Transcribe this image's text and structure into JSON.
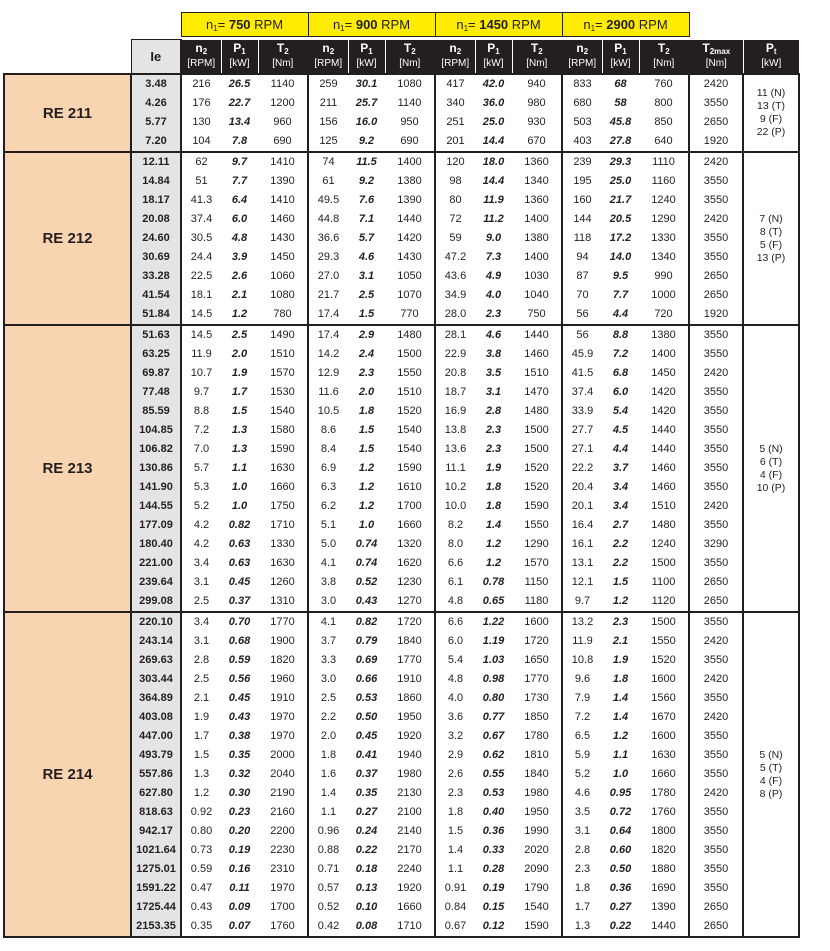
{
  "header": {
    "speed_groups": [
      {
        "prefix": "n",
        "sub": "1",
        "eq": "= ",
        "speed": "750",
        "unit": " RPM"
      },
      {
        "prefix": "n",
        "sub": "1",
        "eq": "= ",
        "speed": "900",
        "unit": " RPM"
      },
      {
        "prefix": "n",
        "sub": "1",
        "eq": "= ",
        "speed": "1450",
        "unit": " RPM"
      },
      {
        "prefix": "n",
        "sub": "1",
        "eq": "= ",
        "speed": "2900",
        "unit": " RPM"
      }
    ],
    "ie_label": "Ie",
    "sub_columns": [
      {
        "sym": "n",
        "sub": "2",
        "unit": "[RPM]"
      },
      {
        "sym": "P",
        "sub": "1",
        "unit": "[kW]"
      },
      {
        "sym": "T",
        "sub": "2",
        "unit": "[Nm]"
      }
    ],
    "t2max": {
      "sym": "T",
      "sub": "2max",
      "unit": "[Nm]"
    },
    "pt": {
      "sym": "P",
      "sub": "t",
      "unit": "[kW]"
    }
  },
  "groups": [
    {
      "name": "RE 211",
      "pt": [
        "11 (N)",
        "13 (T)",
        "9 (F)",
        "22 (P)"
      ],
      "rows": [
        [
          "3.48",
          "216",
          "26.5",
          "1140",
          "259",
          "30.1",
          "1080",
          "417",
          "42.0",
          "940",
          "833",
          "68",
          "760",
          "2420"
        ],
        [
          "4.26",
          "176",
          "22.7",
          "1200",
          "211",
          "25.7",
          "1140",
          "340",
          "36.0",
          "980",
          "680",
          "58",
          "800",
          "3550"
        ],
        [
          "5.77",
          "130",
          "13.4",
          "960",
          "156",
          "16.0",
          "950",
          "251",
          "25.0",
          "930",
          "503",
          "45.8",
          "850",
          "2650"
        ],
        [
          "7.20",
          "104",
          "7.8",
          "690",
          "125",
          "9.2",
          "690",
          "201",
          "14.4",
          "670",
          "403",
          "27.8",
          "640",
          "1920"
        ]
      ]
    },
    {
      "name": "RE 212",
      "pt": [
        "7 (N)",
        "8 (T)",
        "5 (F)",
        "13 (P)"
      ],
      "rows": [
        [
          "12.11",
          "62",
          "9.7",
          "1410",
          "74",
          "11.5",
          "1400",
          "120",
          "18.0",
          "1360",
          "239",
          "29.3",
          "1110",
          "2420"
        ],
        [
          "14.84",
          "51",
          "7.7",
          "1390",
          "61",
          "9.2",
          "1380",
          "98",
          "14.4",
          "1340",
          "195",
          "25.0",
          "1160",
          "3550"
        ],
        [
          "18.17",
          "41.3",
          "6.4",
          "1410",
          "49.5",
          "7.6",
          "1390",
          "80",
          "11.9",
          "1360",
          "160",
          "21.7",
          "1240",
          "3550"
        ],
        [
          "20.08",
          "37.4",
          "6.0",
          "1460",
          "44.8",
          "7.1",
          "1440",
          "72",
          "11.2",
          "1400",
          "144",
          "20.5",
          "1290",
          "2420"
        ],
        [
          "24.60",
          "30.5",
          "4.8",
          "1430",
          "36.6",
          "5.7",
          "1420",
          "59",
          "9.0",
          "1380",
          "118",
          "17.2",
          "1330",
          "3550"
        ],
        [
          "30.69",
          "24.4",
          "3.9",
          "1450",
          "29.3",
          "4.6",
          "1430",
          "47.2",
          "7.3",
          "1400",
          "94",
          "14.0",
          "1340",
          "3550"
        ],
        [
          "33.28",
          "22.5",
          "2.6",
          "1060",
          "27.0",
          "3.1",
          "1050",
          "43.6",
          "4.9",
          "1030",
          "87",
          "9.5",
          "990",
          "2650"
        ],
        [
          "41.54",
          "18.1",
          "2.1",
          "1080",
          "21.7",
          "2.5",
          "1070",
          "34.9",
          "4.0",
          "1040",
          "70",
          "7.7",
          "1000",
          "2650"
        ],
        [
          "51.84",
          "14.5",
          "1.2",
          "780",
          "17.4",
          "1.5",
          "770",
          "28.0",
          "2.3",
          "750",
          "56",
          "4.4",
          "720",
          "1920"
        ]
      ]
    },
    {
      "name": "RE 213",
      "pt": [
        "5 (N)",
        "6 (T)",
        "4 (F)",
        "10 (P)"
      ],
      "rows": [
        [
          "51.63",
          "14.5",
          "2.5",
          "1490",
          "17.4",
          "2.9",
          "1480",
          "28.1",
          "4.6",
          "1440",
          "56",
          "8.8",
          "1380",
          "3550"
        ],
        [
          "63.25",
          "11.9",
          "2.0",
          "1510",
          "14.2",
          "2.4",
          "1500",
          "22.9",
          "3.8",
          "1460",
          "45.9",
          "7.2",
          "1400",
          "3550"
        ],
        [
          "69.87",
          "10.7",
          "1.9",
          "1570",
          "12.9",
          "2.3",
          "1550",
          "20.8",
          "3.5",
          "1510",
          "41.5",
          "6.8",
          "1450",
          "2420"
        ],
        [
          "77.48",
          "9.7",
          "1.7",
          "1530",
          "11.6",
          "2.0",
          "1510",
          "18.7",
          "3.1",
          "1470",
          "37.4",
          "6.0",
          "1420",
          "3550"
        ],
        [
          "85.59",
          "8.8",
          "1.5",
          "1540",
          "10.5",
          "1.8",
          "1520",
          "16.9",
          "2.8",
          "1480",
          "33.9",
          "5.4",
          "1420",
          "3550"
        ],
        [
          "104.85",
          "7.2",
          "1.3",
          "1580",
          "8.6",
          "1.5",
          "1540",
          "13.8",
          "2.3",
          "1500",
          "27.7",
          "4.5",
          "1440",
          "3550"
        ],
        [
          "106.82",
          "7.0",
          "1.3",
          "1590",
          "8.4",
          "1.5",
          "1540",
          "13.6",
          "2.3",
          "1500",
          "27.1",
          "4.4",
          "1440",
          "3550"
        ],
        [
          "130.86",
          "5.7",
          "1.1",
          "1630",
          "6.9",
          "1.2",
          "1590",
          "11.1",
          "1.9",
          "1520",
          "22.2",
          "3.7",
          "1460",
          "3550"
        ],
        [
          "141.90",
          "5.3",
          "1.0",
          "1660",
          "6.3",
          "1.2",
          "1610",
          "10.2",
          "1.8",
          "1520",
          "20.4",
          "3.4",
          "1460",
          "3550"
        ],
        [
          "144.55",
          "5.2",
          "1.0",
          "1750",
          "6.2",
          "1.2",
          "1700",
          "10.0",
          "1.8",
          "1590",
          "20.1",
          "3.4",
          "1510",
          "2420"
        ],
        [
          "177.09",
          "4.2",
          "0.82",
          "1710",
          "5.1",
          "1.0",
          "1660",
          "8.2",
          "1.4",
          "1550",
          "16.4",
          "2.7",
          "1480",
          "3550"
        ],
        [
          "180.40",
          "4.2",
          "0.63",
          "1330",
          "5.0",
          "0.74",
          "1320",
          "8.0",
          "1.2",
          "1290",
          "16.1",
          "2.2",
          "1240",
          "3290"
        ],
        [
          "221.00",
          "3.4",
          "0.63",
          "1630",
          "4.1",
          "0.74",
          "1620",
          "6.6",
          "1.2",
          "1570",
          "13.1",
          "2.2",
          "1500",
          "3550"
        ],
        [
          "239.64",
          "3.1",
          "0.45",
          "1260",
          "3.8",
          "0.52",
          "1230",
          "6.1",
          "0.78",
          "1150",
          "12.1",
          "1.5",
          "1100",
          "2650"
        ],
        [
          "299.08",
          "2.5",
          "0.37",
          "1310",
          "3.0",
          "0.43",
          "1270",
          "4.8",
          "0.65",
          "1180",
          "9.7",
          "1.2",
          "1120",
          "2650"
        ]
      ]
    },
    {
      "name": "RE 214",
      "pt": [
        "5 (N)",
        "5 (T)",
        "4 (F)",
        "8 (P)"
      ],
      "rows": [
        [
          "220.10",
          "3.4",
          "0.70",
          "1770",
          "4.1",
          "0.82",
          "1720",
          "6.6",
          "1.22",
          "1600",
          "13.2",
          "2.3",
          "1500",
          "3550"
        ],
        [
          "243.14",
          "3.1",
          "0.68",
          "1900",
          "3.7",
          "0.79",
          "1840",
          "6.0",
          "1.19",
          "1720",
          "11.9",
          "2.1",
          "1550",
          "2420"
        ],
        [
          "269.63",
          "2.8",
          "0.59",
          "1820",
          "3.3",
          "0.69",
          "1770",
          "5.4",
          "1.03",
          "1650",
          "10.8",
          "1.9",
          "1520",
          "3550"
        ],
        [
          "303.44",
          "2.5",
          "0.56",
          "1960",
          "3.0",
          "0.66",
          "1910",
          "4.8",
          "0.98",
          "1770",
          "9.6",
          "1.8",
          "1600",
          "2420"
        ],
        [
          "364.89",
          "2.1",
          "0.45",
          "1910",
          "2.5",
          "0.53",
          "1860",
          "4.0",
          "0.80",
          "1730",
          "7.9",
          "1.4",
          "1560",
          "3550"
        ],
        [
          "403.08",
          "1.9",
          "0.43",
          "1970",
          "2.2",
          "0.50",
          "1950",
          "3.6",
          "0.77",
          "1850",
          "7.2",
          "1.4",
          "1670",
          "2420"
        ],
        [
          "447.00",
          "1.7",
          "0.38",
          "1970",
          "2.0",
          "0.45",
          "1920",
          "3.2",
          "0.67",
          "1780",
          "6.5",
          "1.2",
          "1600",
          "3550"
        ],
        [
          "493.79",
          "1.5",
          "0.35",
          "2000",
          "1.8",
          "0.41",
          "1940",
          "2.9",
          "0.62",
          "1810",
          "5.9",
          "1.1",
          "1630",
          "3550"
        ],
        [
          "557.86",
          "1.3",
          "0.32",
          "2040",
          "1.6",
          "0.37",
          "1980",
          "2.6",
          "0.55",
          "1840",
          "5.2",
          "1.0",
          "1660",
          "3550"
        ],
        [
          "627.80",
          "1.2",
          "0.30",
          "2190",
          "1.4",
          "0.35",
          "2130",
          "2.3",
          "0.53",
          "1980",
          "4.6",
          "0.95",
          "1780",
          "2420"
        ],
        [
          "818.63",
          "0.92",
          "0.23",
          "2160",
          "1.1",
          "0.27",
          "2100",
          "1.8",
          "0.40",
          "1950",
          "3.5",
          "0.72",
          "1760",
          "3550"
        ],
        [
          "942.17",
          "0.80",
          "0.20",
          "2200",
          "0.96",
          "0.24",
          "2140",
          "1.5",
          "0.36",
          "1990",
          "3.1",
          "0.64",
          "1800",
          "3550"
        ],
        [
          "1021.64",
          "0.73",
          "0.19",
          "2230",
          "0.88",
          "0.22",
          "2170",
          "1.4",
          "0.33",
          "2020",
          "2.8",
          "0.60",
          "1820",
          "3550"
        ],
        [
          "1275.01",
          "0.59",
          "0.16",
          "2310",
          "0.71",
          "0.18",
          "2240",
          "1.1",
          "0.28",
          "2090",
          "2.3",
          "0.50",
          "1880",
          "3550"
        ],
        [
          "1591.22",
          "0.47",
          "0.11",
          "1970",
          "0.57",
          "0.13",
          "1920",
          "0.91",
          "0.19",
          "1790",
          "1.8",
          "0.36",
          "1690",
          "3550"
        ],
        [
          "1725.44",
          "0.43",
          "0.09",
          "1700",
          "0.52",
          "0.10",
          "1660",
          "0.84",
          "0.15",
          "1540",
          "1.7",
          "0.27",
          "1390",
          "2650"
        ],
        [
          "2153.35",
          "0.35",
          "0.07",
          "1760",
          "0.42",
          "0.08",
          "1710",
          "0.67",
          "0.12",
          "1590",
          "1.3",
          "0.22",
          "1440",
          "2650"
        ]
      ]
    }
  ],
  "colors": {
    "speed_header": "#ffec00",
    "column_header": "#231f20",
    "group_label": "#f9d4b0",
    "ratio_column": "#e4e4e4"
  }
}
